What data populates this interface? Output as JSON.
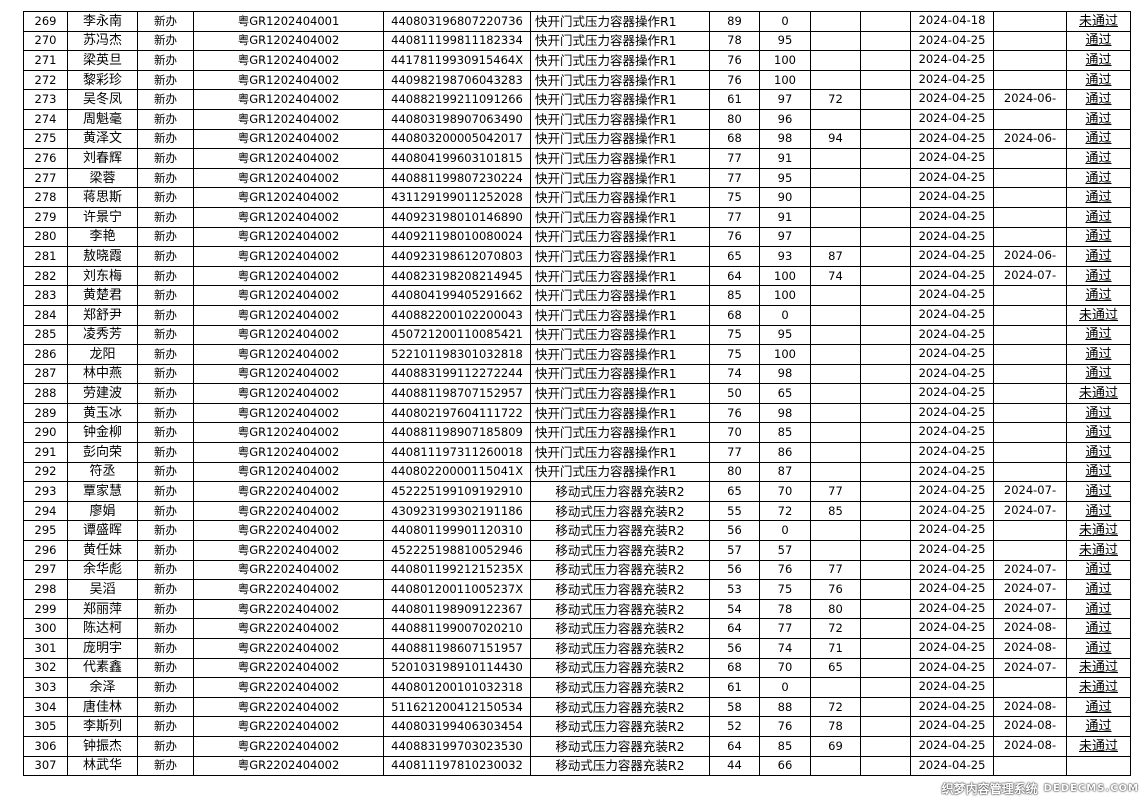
{
  "columns": [
    "no",
    "name",
    "type",
    "cert_no",
    "id_no",
    "course",
    "score1",
    "score2",
    "score3",
    "blank",
    "date1",
    "date2",
    "result"
  ],
  "rows": [
    [
      "269",
      "李永南",
      "新办",
      "粤GR1202404001",
      "440803196807220736",
      "快开门式压力容器操作R1",
      "89",
      "0",
      "",
      "",
      "2024-04-18",
      "",
      "未通过"
    ],
    [
      "270",
      "苏冯杰",
      "新办",
      "粤GR1202404002",
      "440811199811182334",
      "快开门式压力容器操作R1",
      "78",
      "95",
      "",
      "",
      "2024-04-25",
      "",
      "通过"
    ],
    [
      "271",
      "梁英旦",
      "新办",
      "粤GR1202404002",
      "44178119930915464X",
      "快开门式压力容器操作R1",
      "76",
      "100",
      "",
      "",
      "2024-04-25",
      "",
      "通过"
    ],
    [
      "272",
      "黎彩珍",
      "新办",
      "粤GR1202404002",
      "440982198706043283",
      "快开门式压力容器操作R1",
      "76",
      "100",
      "",
      "",
      "2024-04-25",
      "",
      "通过"
    ],
    [
      "273",
      "吴冬凤",
      "新办",
      "粤GR1202404002",
      "440882199211091266",
      "快开门式压力容器操作R1",
      "61",
      "97",
      "72",
      "",
      "2024-04-25",
      "2024-06-",
      "通过"
    ],
    [
      "274",
      "周魁毫",
      "新办",
      "粤GR1202404002",
      "440803198907063490",
      "快开门式压力容器操作R1",
      "80",
      "96",
      "",
      "",
      "2024-04-25",
      "",
      "通过"
    ],
    [
      "275",
      "黄泽文",
      "新办",
      "粤GR1202404002",
      "440803200005042017",
      "快开门式压力容器操作R1",
      "68",
      "98",
      "94",
      "",
      "2024-04-25",
      "2024-06-",
      "通过"
    ],
    [
      "276",
      "刘春辉",
      "新办",
      "粤GR1202404002",
      "440804199603101815",
      "快开门式压力容器操作R1",
      "77",
      "91",
      "",
      "",
      "2024-04-25",
      "",
      "通过"
    ],
    [
      "277",
      "梁蓉",
      "新办",
      "粤GR1202404002",
      "440881199807230224",
      "快开门式压力容器操作R1",
      "77",
      "95",
      "",
      "",
      "2024-04-25",
      "",
      "通过"
    ],
    [
      "278",
      "蒋思斯",
      "新办",
      "粤GR1202404002",
      "431129199011252028",
      "快开门式压力容器操作R1",
      "75",
      "90",
      "",
      "",
      "2024-04-25",
      "",
      "通过"
    ],
    [
      "279",
      "许景宁",
      "新办",
      "粤GR1202404002",
      "440923198010146890",
      "快开门式压力容器操作R1",
      "77",
      "91",
      "",
      "",
      "2024-04-25",
      "",
      "通过"
    ],
    [
      "280",
      "李艳",
      "新办",
      "粤GR1202404002",
      "440921198010080024",
      "快开门式压力容器操作R1",
      "76",
      "97",
      "",
      "",
      "2024-04-25",
      "",
      "通过"
    ],
    [
      "281",
      "敖晓霞",
      "新办",
      "粤GR1202404002",
      "440923198612070803",
      "快开门式压力容器操作R1",
      "65",
      "93",
      "87",
      "",
      "2024-04-25",
      "2024-06-",
      "通过"
    ],
    [
      "282",
      "刘东梅",
      "新办",
      "粤GR1202404002",
      "440823198208214945",
      "快开门式压力容器操作R1",
      "64",
      "100",
      "74",
      "",
      "2024-04-25",
      "2024-07-",
      "通过"
    ],
    [
      "283",
      "黄楚君",
      "新办",
      "粤GR1202404002",
      "440804199405291662",
      "快开门式压力容器操作R1",
      "85",
      "100",
      "",
      "",
      "2024-04-25",
      "",
      "通过"
    ],
    [
      "284",
      "郑舒尹",
      "新办",
      "粤GR1202404002",
      "440882200102200043",
      "快开门式压力容器操作R1",
      "68",
      "0",
      "",
      "",
      "2024-04-25",
      "",
      "未通过"
    ],
    [
      "285",
      "凌秀芳",
      "新办",
      "粤GR1202404002",
      "450721200110085421",
      "快开门式压力容器操作R1",
      "75",
      "95",
      "",
      "",
      "2024-04-25",
      "",
      "通过"
    ],
    [
      "286",
      "龙阳",
      "新办",
      "粤GR1202404002",
      "522101198301032818",
      "快开门式压力容器操作R1",
      "75",
      "100",
      "",
      "",
      "2024-04-25",
      "",
      "通过"
    ],
    [
      "287",
      "林中燕",
      "新办",
      "粤GR1202404002",
      "440883199112272244",
      "快开门式压力容器操作R1",
      "74",
      "98",
      "",
      "",
      "2024-04-25",
      "",
      "通过"
    ],
    [
      "288",
      "劳建波",
      "新办",
      "粤GR1202404002",
      "440881198707152957",
      "快开门式压力容器操作R1",
      "50",
      "65",
      "",
      "",
      "2024-04-25",
      "",
      "未通过"
    ],
    [
      "289",
      "黄玉冰",
      "新办",
      "粤GR1202404002",
      "440802197604111722",
      "快开门式压力容器操作R1",
      "76",
      "98",
      "",
      "",
      "2024-04-25",
      "",
      "通过"
    ],
    [
      "290",
      "钟金柳",
      "新办",
      "粤GR1202404002",
      "440881198907185809",
      "快开门式压力容器操作R1",
      "70",
      "85",
      "",
      "",
      "2024-04-25",
      "",
      "通过"
    ],
    [
      "291",
      "彭向荣",
      "新办",
      "粤GR1202404002",
      "440811197311260018",
      "快开门式压力容器操作R1",
      "77",
      "86",
      "",
      "",
      "2024-04-25",
      "",
      "通过"
    ],
    [
      "292",
      "符丞",
      "新办",
      "粤GR1202404002",
      "44080220000115041X",
      "快开门式压力容器操作R1",
      "80",
      "87",
      "",
      "",
      "2024-04-25",
      "",
      "通过"
    ],
    [
      "293",
      "覃家慧",
      "新办",
      "粤GR2202404002",
      "452225199109192910",
      "移动式压力容器充装R2",
      "65",
      "70",
      "77",
      "",
      "2024-04-25",
      "2024-07-",
      "通过"
    ],
    [
      "294",
      "廖娟",
      "新办",
      "粤GR2202404002",
      "430923199302191186",
      "移动式压力容器充装R2",
      "55",
      "72",
      "85",
      "",
      "2024-04-25",
      "2024-07-",
      "通过"
    ],
    [
      "295",
      "谭盛晖",
      "新办",
      "粤GR2202404002",
      "440801199901120310",
      "移动式压力容器充装R2",
      "56",
      "0",
      "",
      "",
      "2024-04-25",
      "",
      "未通过"
    ],
    [
      "296",
      "黄任妹",
      "新办",
      "粤GR2202404002",
      "452225198810052946",
      "移动式压力容器充装R2",
      "57",
      "57",
      "",
      "",
      "2024-04-25",
      "",
      "未通过"
    ],
    [
      "297",
      "余华彪",
      "新办",
      "粤GR2202404002",
      "44080119921215235X",
      "移动式压力容器充装R2",
      "56",
      "76",
      "77",
      "",
      "2024-04-25",
      "2024-07-",
      "通过"
    ],
    [
      "298",
      "吴滔",
      "新办",
      "粤GR2202404002",
      "44080120011005237X",
      "移动式压力容器充装R2",
      "53",
      "75",
      "76",
      "",
      "2024-04-25",
      "2024-07-",
      "通过"
    ],
    [
      "299",
      "郑丽萍",
      "新办",
      "粤GR2202404002",
      "440801198909122367",
      "移动式压力容器充装R2",
      "54",
      "78",
      "80",
      "",
      "2024-04-25",
      "2024-07-",
      "通过"
    ],
    [
      "300",
      "陈达柯",
      "新办",
      "粤GR2202404002",
      "440881199007020210",
      "移动式压力容器充装R2",
      "64",
      "77",
      "72",
      "",
      "2024-04-25",
      "2024-08-",
      "通过"
    ],
    [
      "301",
      "庞明宇",
      "新办",
      "粤GR2202404002",
      "440881198607151957",
      "移动式压力容器充装R2",
      "56",
      "74",
      "71",
      "",
      "2024-04-25",
      "2024-08-",
      "通过"
    ],
    [
      "302",
      "代素鑫",
      "新办",
      "粤GR2202404002",
      "520103198910114430",
      "移动式压力容器充装R2",
      "68",
      "70",
      "65",
      "",
      "2024-04-25",
      "2024-07-",
      "未通过"
    ],
    [
      "303",
      "余泽",
      "新办",
      "粤GR2202404002",
      "440801200101032318",
      "移动式压力容器充装R2",
      "61",
      "0",
      "",
      "",
      "2024-04-25",
      "",
      "未通过"
    ],
    [
      "304",
      "唐佳林",
      "新办",
      "粤GR2202404002",
      "511621200412150534",
      "移动式压力容器充装R2",
      "58",
      "88",
      "72",
      "",
      "2024-04-25",
      "2024-08-",
      "通过"
    ],
    [
      "305",
      "李斯列",
      "新办",
      "粤GR2202404002",
      "440803199406303454",
      "移动式压力容器充装R2",
      "52",
      "76",
      "78",
      "",
      "2024-04-25",
      "2024-08-",
      "通过"
    ],
    [
      "306",
      "钟振杰",
      "新办",
      "粤GR2202404002",
      "440883199703023530",
      "移动式压力容器充装R2",
      "64",
      "85",
      "69",
      "",
      "2024-04-25",
      "2024-08-",
      "未通过"
    ],
    [
      "307",
      "林武华",
      "新办",
      "粤GR2202404002",
      "440811197810230032",
      "移动式压力容器充装R2",
      "44",
      "66",
      "",
      "",
      "2024-04-25",
      "",
      ""
    ]
  ],
  "watermark": {
    "line1": "织梦内容管理系统",
    "line2": "DEDECMS.COM"
  }
}
